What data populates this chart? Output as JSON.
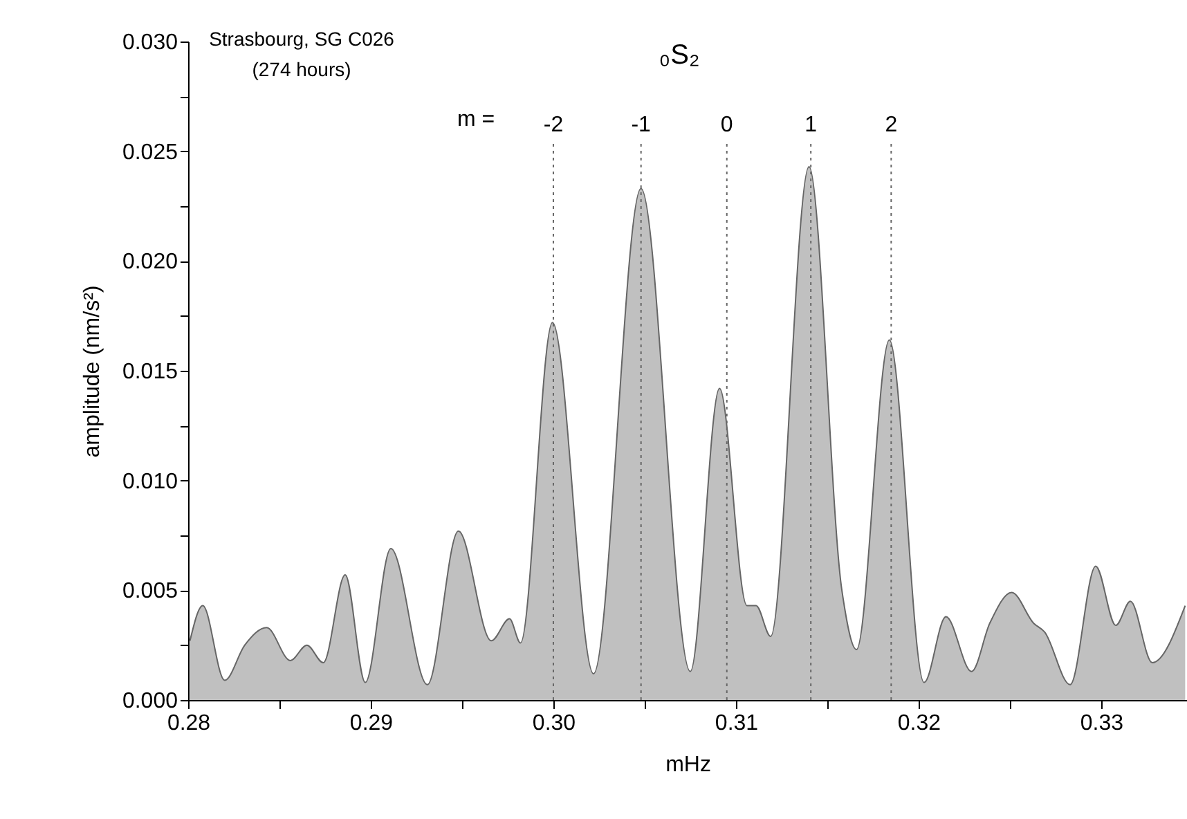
{
  "chart_data": {
    "type": "area",
    "xlabel": "mHz",
    "ylabel": "amplitude (nm/s²)",
    "x": [
      0.2801,
      0.2808,
      0.282,
      0.2831,
      0.2843,
      0.2856,
      0.2865,
      0.2874,
      0.2886,
      0.2897,
      0.2911,
      0.2931,
      0.2948,
      0.2966,
      0.2976,
      0.2982,
      0.29995,
      0.3022,
      0.3048,
      0.3075,
      0.3091,
      0.3106,
      0.3111,
      0.3119,
      0.314,
      0.3158,
      0.3166,
      0.3184,
      0.3203,
      0.3215,
      0.3229,
      0.3239,
      0.3251,
      0.3263,
      0.3269,
      0.3283,
      0.3297,
      0.3308,
      0.3316,
      0.3328,
      0.3346
    ],
    "series": [
      {
        "color": "#c0c0c0",
        "values": [
          0.0027,
          0.0043,
          0.0009,
          0.0025,
          0.0033,
          0.0018,
          0.0025,
          0.0017,
          0.0057,
          0.0008,
          0.0069,
          0.0007,
          0.0077,
          0.0027,
          0.0037,
          0.0026,
          0.0172,
          0.0012,
          0.0233,
          0.0013,
          0.0142,
          0.0043,
          0.0043,
          0.0029,
          0.0243,
          0.005,
          0.0023,
          0.0164,
          0.0008,
          0.0038,
          0.0013,
          0.0035,
          0.0049,
          0.0035,
          0.0031,
          0.0007,
          0.0061,
          0.0034,
          0.0045,
          0.0017,
          0.0043
        ]
      }
    ],
    "xlim": [
      0.28,
      0.3347
    ],
    "xticks": [
      0.28,
      {
        "value": 0.285,
        "label": null
      },
      0.29,
      {
        "value": 0.295,
        "label": null
      },
      {
        "value": 0.3,
        "label": "0.30"
      },
      {
        "value": 0.305,
        "label": null
      },
      0.31,
      {
        "value": 0.315,
        "label": null
      },
      0.32,
      {
        "value": 0.325,
        "label": null
      },
      0.33
    ],
    "ylim": [
      0,
      0.03
    ],
    "yticks": [
      {
        "value": 0,
        "label": "0.000"
      },
      {
        "value": 0.0025,
        "label": null
      },
      {
        "value": 0.005,
        "label": "0.005"
      },
      {
        "value": 0.0075,
        "label": null
      },
      {
        "value": 0.01,
        "label": "0.010"
      },
      {
        "value": 0.0125,
        "label": null
      },
      {
        "value": 0.015,
        "label": "0.015"
      },
      {
        "value": 0.0175,
        "label": null
      },
      {
        "value": 0.02,
        "label": "0.020"
      },
      {
        "value": 0.0225,
        "label": null
      },
      {
        "value": 0.025,
        "label": "0.025"
      },
      {
        "value": 0.0275,
        "label": null
      },
      {
        "value": 0.03,
        "label": "0.030"
      }
    ],
    "ref_lines": [
      {
        "axis": "x",
        "value": 0.3,
        "color": "#666666",
        "line_style": "dotted"
      },
      {
        "axis": "x",
        "value": 0.3048,
        "color": "#666666",
        "line_style": "dotted"
      },
      {
        "axis": "x",
        "value": 0.3095,
        "color": "#666666",
        "line_style": "dotted"
      },
      {
        "axis": "x",
        "value": 0.3141,
        "color": "#666666",
        "line_style": "dotted"
      },
      {
        "axis": "x",
        "value": 0.3185,
        "color": "#666666",
        "line_style": "dotted"
      }
    ],
    "annotations": [
      "Strasbourg, SG C026",
      "(274 hours)",
      "₀S₂",
      "m =",
      "-2",
      "-1",
      "0",
      "1",
      "2"
    ],
    "grid": false
  }
}
